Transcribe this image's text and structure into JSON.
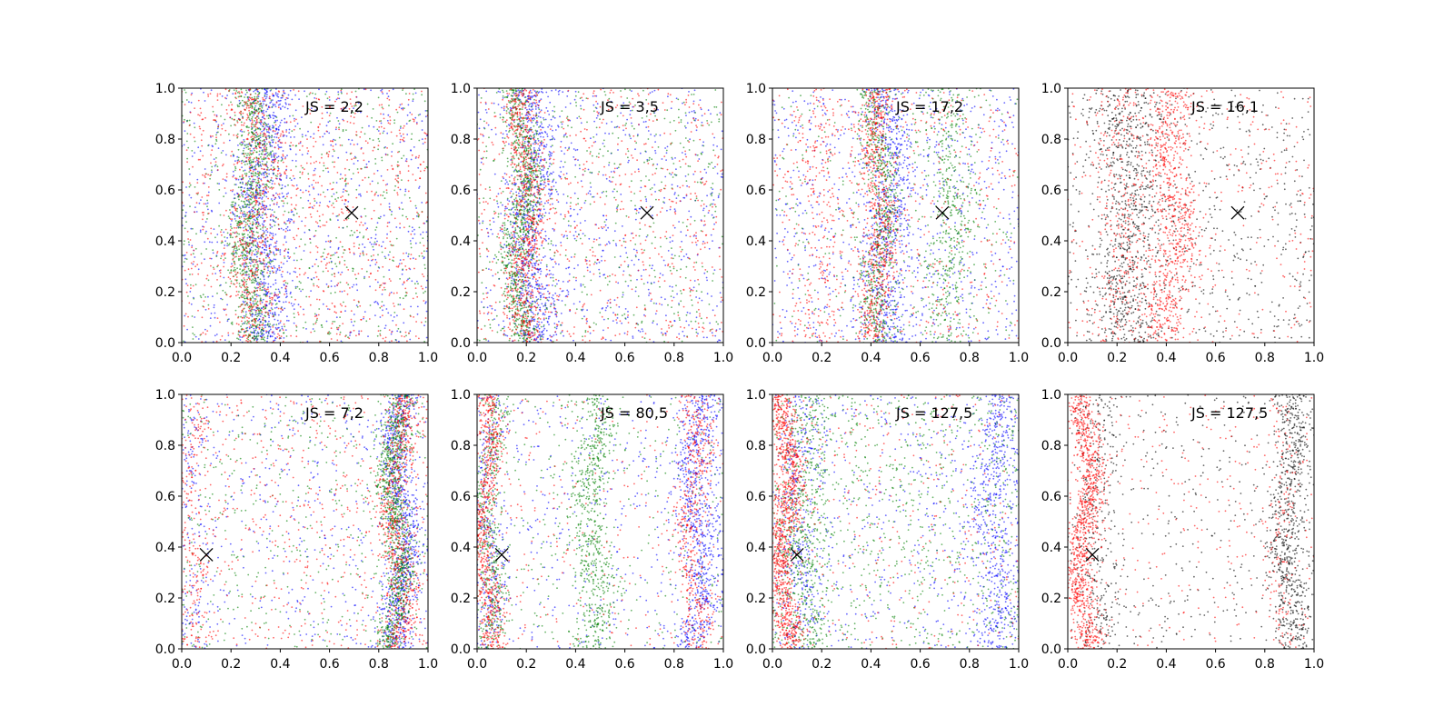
{
  "chart_data": [
    {
      "type": "scatter",
      "row": 0,
      "col": 0,
      "annotation": "JS = 2,2",
      "marker": {
        "x": 0.69,
        "y": 0.51
      },
      "xlim": [
        0,
        1
      ],
      "ylim": [
        0,
        1
      ],
      "xticks": [
        "0.0",
        "0.2",
        "0.4",
        "0.6",
        "0.8",
        "1.0"
      ],
      "yticks": [
        "0.0",
        "0.2",
        "0.4",
        "0.6",
        "0.8",
        "1.0"
      ],
      "series": [
        {
          "color": "#0000ff",
          "bands": [
            {
              "center": 0.33,
              "width": 0.05,
              "weight": 0.55
            }
          ]
        },
        {
          "color": "#008000",
          "bands": [
            {
              "center": 0.28,
              "width": 0.04,
              "weight": 0.6
            }
          ]
        },
        {
          "color": "#ff0000",
          "bands": [
            {
              "center": 0.3,
              "width": 0.05,
              "weight": 0.35
            }
          ]
        }
      ]
    },
    {
      "type": "scatter",
      "row": 0,
      "col": 1,
      "annotation": "JS = 3,5",
      "marker": {
        "x": 0.69,
        "y": 0.51
      },
      "xlim": [
        0,
        1
      ],
      "ylim": [
        0,
        1
      ],
      "xticks": [
        "0.0",
        "0.2",
        "0.4",
        "0.6",
        "0.8",
        "1.0"
      ],
      "yticks": [
        "0.0",
        "0.2",
        "0.4",
        "0.6",
        "0.8",
        "1.0"
      ],
      "series": [
        {
          "color": "#0000ff",
          "bands": [
            {
              "center": 0.22,
              "width": 0.05,
              "weight": 0.55
            }
          ]
        },
        {
          "color": "#008000",
          "bands": [
            {
              "center": 0.18,
              "width": 0.035,
              "weight": 0.65
            }
          ]
        },
        {
          "color": "#ff0000",
          "bands": [
            {
              "center": 0.2,
              "width": 0.035,
              "weight": 0.5
            }
          ]
        }
      ]
    },
    {
      "type": "scatter",
      "row": 0,
      "col": 2,
      "annotation": "JS = 17,2",
      "marker": {
        "x": 0.69,
        "y": 0.51
      },
      "xlim": [
        0,
        1
      ],
      "ylim": [
        0,
        1
      ],
      "xticks": [
        "0.0",
        "0.2",
        "0.4",
        "0.6",
        "0.8",
        "1.0"
      ],
      "yticks": [
        "0.0",
        "0.2",
        "0.4",
        "0.6",
        "0.8",
        "1.0"
      ],
      "series": [
        {
          "color": "#0000ff",
          "bands": [
            {
              "center": 0.47,
              "width": 0.05,
              "weight": 0.45
            }
          ]
        },
        {
          "color": "#008000",
          "bands": [
            {
              "center": 0.44,
              "width": 0.035,
              "weight": 0.45
            },
            {
              "center": 0.72,
              "width": 0.05,
              "weight": 0.3
            }
          ]
        },
        {
          "color": "#ff0000",
          "bands": [
            {
              "center": 0.43,
              "width": 0.035,
              "weight": 0.45
            },
            {
              "center": 0.2,
              "width": 0.05,
              "weight": 0.15
            }
          ]
        }
      ]
    },
    {
      "type": "scatter",
      "row": 0,
      "col": 3,
      "annotation": "JS = 16,1",
      "marker": {
        "x": 0.69,
        "y": 0.51
      },
      "xlim": [
        0,
        1
      ],
      "ylim": [
        0,
        1
      ],
      "xticks": [
        "0.0",
        "0.2",
        "0.4",
        "0.6",
        "0.8",
        "1.0"
      ],
      "yticks": [
        "0.0",
        "0.2",
        "0.4",
        "0.6",
        "0.8",
        "1.0"
      ],
      "series": [
        {
          "color": "#000000",
          "bands": [
            {
              "center": 0.25,
              "width": 0.07,
              "weight": 0.5
            }
          ]
        },
        {
          "color": "#ff0000",
          "bands": [
            {
              "center": 0.42,
              "width": 0.05,
              "weight": 0.55
            },
            {
              "center": 0.22,
              "width": 0.06,
              "weight": 0.2
            }
          ]
        }
      ]
    },
    {
      "type": "scatter",
      "row": 1,
      "col": 0,
      "annotation": "JS = 7,2",
      "marker": {
        "x": 0.1,
        "y": 0.37
      },
      "xlim": [
        0,
        1
      ],
      "ylim": [
        0,
        1
      ],
      "xticks": [
        "0.0",
        "0.2",
        "0.4",
        "0.6",
        "0.8",
        "1.0"
      ],
      "yticks": [
        "0.0",
        "0.2",
        "0.4",
        "0.6",
        "0.8",
        "1.0"
      ],
      "series": [
        {
          "color": "#0000ff",
          "bands": [
            {
              "center": 0.89,
              "width": 0.035,
              "weight": 0.6
            },
            {
              "center": 0.05,
              "width": 0.04,
              "weight": 0.1
            }
          ]
        },
        {
          "color": "#008000",
          "bands": [
            {
              "center": 0.87,
              "width": 0.03,
              "weight": 0.7
            }
          ]
        },
        {
          "color": "#ff0000",
          "bands": [
            {
              "center": 0.88,
              "width": 0.035,
              "weight": 0.45
            },
            {
              "center": 0.04,
              "width": 0.03,
              "weight": 0.15
            }
          ]
        }
      ]
    },
    {
      "type": "scatter",
      "row": 1,
      "col": 1,
      "annotation": "JS = 80,5",
      "marker": {
        "x": 0.1,
        "y": 0.37
      },
      "xlim": [
        0,
        1
      ],
      "ylim": [
        0,
        1
      ],
      "xticks": [
        "0.0",
        "0.2",
        "0.4",
        "0.6",
        "0.8",
        "1.0"
      ],
      "yticks": [
        "0.0",
        "0.2",
        "0.4",
        "0.6",
        "0.8",
        "1.0"
      ],
      "series": [
        {
          "color": "#0000ff",
          "bands": [
            {
              "center": 0.9,
              "width": 0.04,
              "weight": 0.5
            },
            {
              "center": 0.05,
              "width": 0.03,
              "weight": 0.2
            }
          ]
        },
        {
          "color": "#008000",
          "bands": [
            {
              "center": 0.47,
              "width": 0.04,
              "weight": 0.45
            },
            {
              "center": 0.05,
              "width": 0.03,
              "weight": 0.3
            }
          ]
        },
        {
          "color": "#ff0000",
          "bands": [
            {
              "center": 0.04,
              "width": 0.025,
              "weight": 0.55
            },
            {
              "center": 0.88,
              "width": 0.035,
              "weight": 0.4
            }
          ]
        }
      ]
    },
    {
      "type": "scatter",
      "row": 1,
      "col": 2,
      "annotation": "JS = 127,5",
      "marker": {
        "x": 0.1,
        "y": 0.37
      },
      "xlim": [
        0,
        1
      ],
      "ylim": [
        0,
        1
      ],
      "xticks": [
        "0.0",
        "0.2",
        "0.4",
        "0.6",
        "0.8",
        "1.0"
      ],
      "yticks": [
        "0.0",
        "0.2",
        "0.4",
        "0.6",
        "0.8",
        "1.0"
      ],
      "series": [
        {
          "color": "#0000ff",
          "bands": [
            {
              "center": 0.9,
              "width": 0.05,
              "weight": 0.4
            },
            {
              "center": 0.1,
              "width": 0.04,
              "weight": 0.2
            }
          ]
        },
        {
          "color": "#008000",
          "bands": [
            {
              "center": 0.12,
              "width": 0.05,
              "weight": 0.35
            }
          ]
        },
        {
          "color": "#ff0000",
          "bands": [
            {
              "center": 0.05,
              "width": 0.03,
              "weight": 0.75
            }
          ]
        }
      ]
    },
    {
      "type": "scatter",
      "row": 1,
      "col": 3,
      "annotation": "JS = 127,5",
      "marker": {
        "x": 0.1,
        "y": 0.37
      },
      "xlim": [
        0,
        1
      ],
      "ylim": [
        0,
        1
      ],
      "xticks": [
        "0.0",
        "0.2",
        "0.4",
        "0.6",
        "0.8",
        "1.0"
      ],
      "yticks": [
        "0.0",
        "0.2",
        "0.4",
        "0.6",
        "0.8",
        "1.0"
      ],
      "series": [
        {
          "color": "#000000",
          "bands": [
            {
              "center": 0.9,
              "width": 0.04,
              "weight": 0.5
            },
            {
              "center": 0.12,
              "width": 0.04,
              "weight": 0.2
            }
          ]
        },
        {
          "color": "#ff0000",
          "bands": [
            {
              "center": 0.07,
              "width": 0.03,
              "weight": 0.8
            },
            {
              "center": 0.87,
              "width": 0.03,
              "weight": 0.1
            }
          ]
        }
      ]
    }
  ]
}
